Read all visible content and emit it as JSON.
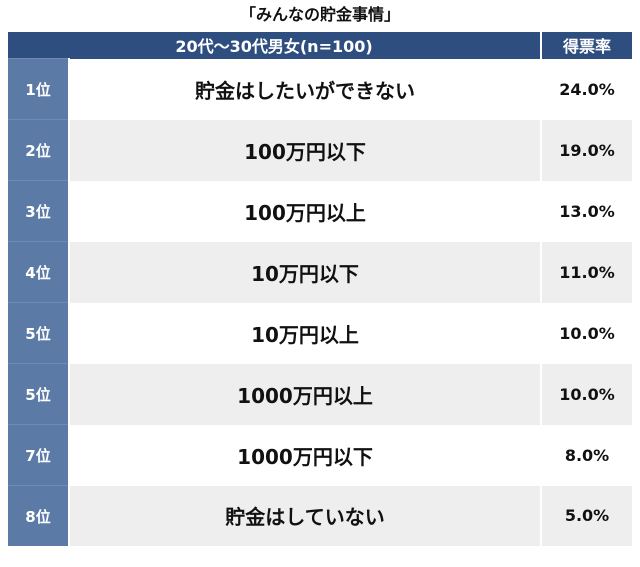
{
  "chart_data": {
    "type": "table",
    "title": "「みんなの貯金事情」",
    "header": {
      "group": "20代〜30代男女(n=100)",
      "rate": "得票率"
    },
    "rows": [
      {
        "rank": "1位",
        "answer": "貯金はしたいができない",
        "rate": "24.0%",
        "value": 24.0
      },
      {
        "rank": "2位",
        "answer": "100万円以下",
        "rate": "19.0%",
        "value": 19.0
      },
      {
        "rank": "3位",
        "answer": "100万円以上",
        "rate": "13.0%",
        "value": 13.0
      },
      {
        "rank": "4位",
        "answer": "10万円以下",
        "rate": "11.0%",
        "value": 11.0
      },
      {
        "rank": "5位",
        "answer": "10万円以上",
        "rate": "10.0%",
        "value": 10.0
      },
      {
        "rank": "5位",
        "answer": "1000万円以上",
        "rate": "10.0%",
        "value": 10.0
      },
      {
        "rank": "7位",
        "answer": "1000万円以下",
        "rate": "8.0%",
        "value": 8.0
      },
      {
        "rank": "8位",
        "answer": "貯金はしていない",
        "rate": "5.0%",
        "value": 5.0
      }
    ]
  }
}
